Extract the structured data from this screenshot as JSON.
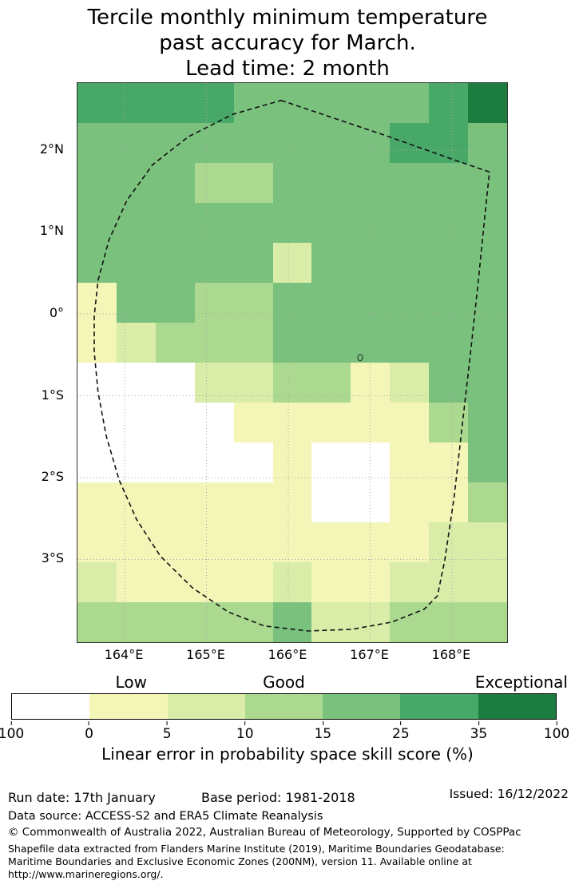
{
  "title": {
    "lines": [
      "Tercile monthly minimum temperature",
      "past accuracy for March.",
      "Lead time: 2 month"
    ]
  },
  "map": {
    "lat_tick_labels": [
      "2°N",
      "1°N",
      "0°",
      "1°S",
      "2°S",
      "3°S"
    ],
    "lon_tick_labels": [
      "164°E",
      "165°E",
      "166°E",
      "167°E",
      "168°E"
    ]
  },
  "colorbar": {
    "quality_labels": [
      "Low",
      "Good",
      "Exceptional"
    ],
    "tick_labels": [
      "100",
      "0",
      "5",
      "10",
      "15",
      "25",
      "35",
      "100"
    ],
    "caption": "Linear error in probability space skill score (%)"
  },
  "footer": {
    "run_date": "Run date: 17th January",
    "base_period": "Base period: 1981-2018",
    "issued": "Issued: 16/12/2022",
    "data_source": "Data source: ACCESS-S2 and ERA5 Climate Reanalysis",
    "copyright": "© Commonwealth of Australia 2022, Australian Bureau of Meteorology, Supported by COSPPac",
    "shapefile_note": "Shapefile data extracted from Flanders Marine Institute (2019), Maritime Boundaries Geodatabase: Maritime Boundaries and Exclusive Economic Zones (200NM), version 11. Available online at http://www.marineregions.org/."
  },
  "chart_data": {
    "type": "heatmap",
    "title": "Tercile monthly minimum temperature past accuracy for March. Lead time: 2 month",
    "x_tick_labels": [
      "164°E",
      "165°E",
      "166°E",
      "167°E",
      "168°E"
    ],
    "y_tick_labels": [
      "2°N",
      "1°N",
      "0°",
      "1°S",
      "2°S",
      "3°S"
    ],
    "colorbar_caption": "Linear error in probability space skill score (%)",
    "colorbar_quality_labels": [
      "Low",
      "Good",
      "Exceptional"
    ],
    "colorbar_tick_labels": [
      "100",
      "0",
      "5",
      "10",
      "15",
      "25",
      "35",
      "100"
    ],
    "bins": [
      {
        "label": "below 0",
        "color": "#ffffff"
      },
      {
        "label": "0-5",
        "color": "#f4f6b8"
      },
      {
        "label": "5-10",
        "color": "#d9eda9"
      },
      {
        "label": "10-15",
        "color": "#abd98f"
      },
      {
        "label": "15-25",
        "color": "#7ac17d"
      },
      {
        "label": "25-35",
        "color": "#48a867"
      },
      {
        "label": "35-100",
        "color": "#1d7c3f"
      }
    ],
    "grid_note": "Bin indices into bins[]; 14 rows north-to-south (~2.8°N to ~4.1°S), 11 cols west-to-east (~163.4°E to ~168.7°E), ~0.5° cells (approximate read)",
    "grid_bin_indices": [
      [
        5,
        5,
        5,
        5,
        4,
        4,
        4,
        4,
        4,
        5,
        6
      ],
      [
        4,
        4,
        4,
        4,
        4,
        4,
        4,
        4,
        5,
        5,
        4
      ],
      [
        4,
        4,
        4,
        3,
        3,
        4,
        4,
        4,
        4,
        4,
        4
      ],
      [
        4,
        4,
        4,
        4,
        4,
        4,
        4,
        4,
        4,
        4,
        4
      ],
      [
        4,
        4,
        4,
        4,
        4,
        2,
        4,
        4,
        4,
        4,
        4
      ],
      [
        1,
        4,
        4,
        3,
        3,
        4,
        4,
        4,
        4,
        4,
        4
      ],
      [
        1,
        2,
        3,
        3,
        3,
        4,
        4,
        4,
        4,
        4,
        4
      ],
      [
        0,
        0,
        0,
        2,
        2,
        3,
        3,
        1,
        2,
        4,
        4
      ],
      [
        0,
        0,
        0,
        0,
        1,
        1,
        1,
        1,
        1,
        3,
        4
      ],
      [
        0,
        0,
        0,
        0,
        0,
        1,
        0,
        0,
        1,
        1,
        4
      ],
      [
        1,
        1,
        1,
        1,
        1,
        1,
        0,
        0,
        1,
        1,
        3
      ],
      [
        1,
        1,
        1,
        1,
        1,
        1,
        1,
        1,
        1,
        2,
        2
      ],
      [
        2,
        1,
        1,
        1,
        1,
        2,
        1,
        1,
        2,
        2,
        2
      ],
      [
        3,
        3,
        3,
        3,
        3,
        4,
        2,
        2,
        3,
        3,
        3
      ]
    ],
    "boundary_outline": [
      [
        0.474,
        0.031
      ],
      [
        0.714,
        0.093
      ],
      [
        0.872,
        0.136
      ],
      [
        0.959,
        0.159
      ],
      [
        0.95,
        0.224
      ],
      [
        0.933,
        0.353
      ],
      [
        0.915,
        0.481
      ],
      [
        0.896,
        0.61
      ],
      [
        0.877,
        0.739
      ],
      [
        0.855,
        0.853
      ],
      [
        0.838,
        0.917
      ],
      [
        0.807,
        0.941
      ],
      [
        0.732,
        0.964
      ],
      [
        0.639,
        0.977
      ],
      [
        0.537,
        0.98
      ],
      [
        0.435,
        0.971
      ],
      [
        0.351,
        0.946
      ],
      [
        0.268,
        0.903
      ],
      [
        0.193,
        0.846
      ],
      [
        0.138,
        0.781
      ],
      [
        0.097,
        0.71
      ],
      [
        0.067,
        0.631
      ],
      [
        0.048,
        0.553
      ],
      [
        0.039,
        0.481
      ],
      [
        0.039,
        0.417
      ],
      [
        0.048,
        0.353
      ],
      [
        0.073,
        0.281
      ],
      [
        0.115,
        0.21
      ],
      [
        0.175,
        0.146
      ],
      [
        0.258,
        0.096
      ],
      [
        0.361,
        0.056
      ]
    ],
    "island_marker": [
      0.658,
      0.491
    ]
  }
}
